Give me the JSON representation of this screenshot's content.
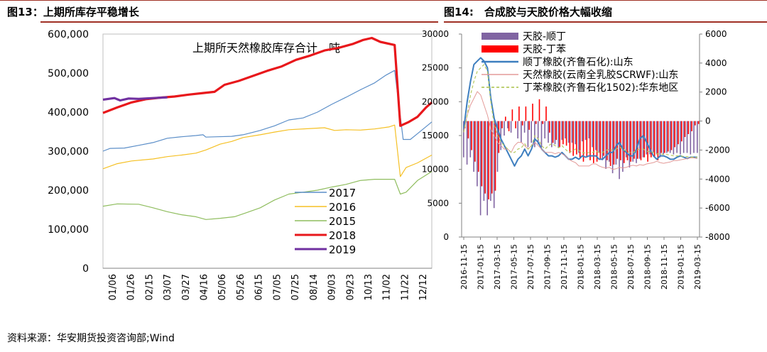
{
  "figure13": {
    "title": "图13：上期所库存平稳增长"
  },
  "figure14": {
    "title": "图14:　合成胶与天胶价格大幅收缩"
  },
  "source": "资料来源：华安期货投资咨询部;Wind",
  "chart_data": [
    {
      "type": "line",
      "title": "上期所天然橡胶库存合计　吨",
      "ylim": [
        0,
        600000
      ],
      "y_ticks": [
        "0",
        "100,000",
        "200,000",
        "300,000",
        "400,000",
        "500,000",
        "600,000"
      ],
      "x_ticks": [
        "01/06",
        "01/26",
        "02/15",
        "03/07",
        "03/27",
        "04/16",
        "05/06",
        "05/26",
        "06/15",
        "07/05",
        "07/25",
        "08/14",
        "09/03",
        "09/23",
        "10/13",
        "11/02",
        "11/22",
        "12/12"
      ],
      "legend_position": "bottom-right",
      "x_index_max": 230,
      "series": [
        {
          "name": "2017",
          "color": "#5b8ec8",
          "width": 1.2,
          "points": [
            [
              0,
              300000
            ],
            [
              5,
              307000
            ],
            [
              15,
              308000
            ],
            [
              25,
              315000
            ],
            [
              35,
              322000
            ],
            [
              45,
              333000
            ],
            [
              55,
              337000
            ],
            [
              65,
              340000
            ],
            [
              70,
              342000
            ],
            [
              72,
              336000
            ],
            [
              80,
              337000
            ],
            [
              90,
              338000
            ],
            [
              98,
              342000
            ],
            [
              110,
              353000
            ],
            [
              120,
              365000
            ],
            [
              130,
              380000
            ],
            [
              140,
              385000
            ],
            [
              150,
              400000
            ],
            [
              160,
              420000
            ],
            [
              170,
              438000
            ],
            [
              180,
              457000
            ],
            [
              190,
              475000
            ],
            [
              198,
              495000
            ],
            [
              204,
              507000
            ],
            [
              210,
              330000
            ],
            [
              215,
              330000
            ],
            [
              220,
              345000
            ],
            [
              230,
              375000
            ]
          ]
        },
        {
          "name": "2016",
          "color": "#f5c024",
          "width": 1.2,
          "points": [
            [
              0,
              255000
            ],
            [
              10,
              268000
            ],
            [
              20,
              275000
            ],
            [
              35,
              280000
            ],
            [
              45,
              286000
            ],
            [
              55,
              290000
            ],
            [
              65,
              295000
            ],
            [
              72,
              303000
            ],
            [
              82,
              318000
            ],
            [
              90,
              325000
            ],
            [
              98,
              335000
            ],
            [
              110,
              342000
            ],
            [
              120,
              349000
            ],
            [
              130,
              355000
            ],
            [
              145,
              358000
            ],
            [
              155,
              360000
            ],
            [
              162,
              353000
            ],
            [
              170,
              355000
            ],
            [
              180,
              354000
            ],
            [
              190,
              357000
            ],
            [
              200,
              362000
            ],
            [
              204,
              367000
            ],
            [
              208,
              235000
            ],
            [
              212,
              258000
            ],
            [
              220,
              270000
            ],
            [
              230,
              290000
            ]
          ]
        },
        {
          "name": "2015",
          "color": "#8fbd5e",
          "width": 1.2,
          "points": [
            [
              0,
              159000
            ],
            [
              10,
              165000
            ],
            [
              25,
              164000
            ],
            [
              35,
              155000
            ],
            [
              45,
              145000
            ],
            [
              55,
              137000
            ],
            [
              65,
              132000
            ],
            [
              72,
              125000
            ],
            [
              82,
              128000
            ],
            [
              92,
              132000
            ],
            [
              100,
              142000
            ],
            [
              110,
              155000
            ],
            [
              120,
              175000
            ],
            [
              130,
              190000
            ],
            [
              140,
              195000
            ],
            [
              150,
              200000
            ],
            [
              160,
              208000
            ],
            [
              170,
              215000
            ],
            [
              180,
              225000
            ],
            [
              190,
              228000
            ],
            [
              200,
              228000
            ],
            [
              204,
              228000
            ],
            [
              208,
              190000
            ],
            [
              212,
              195000
            ],
            [
              220,
              225000
            ],
            [
              230,
              248000
            ]
          ]
        },
        {
          "name": "2018",
          "color": "#e8171b",
          "width": 3.2,
          "points": [
            [
              0,
              398000
            ],
            [
              10,
              412000
            ],
            [
              20,
              425000
            ],
            [
              30,
              433000
            ],
            [
              40,
              437000
            ],
            [
              50,
              440000
            ],
            [
              60,
              445000
            ],
            [
              70,
              449000
            ],
            [
              78,
              452000
            ],
            [
              85,
              470000
            ],
            [
              95,
              480000
            ],
            [
              105,
              493000
            ],
            [
              115,
              506000
            ],
            [
              125,
              517000
            ],
            [
              135,
              534000
            ],
            [
              145,
              545000
            ],
            [
              155,
              558000
            ],
            [
              165,
              565000
            ],
            [
              175,
              575000
            ],
            [
              182,
              585000
            ],
            [
              188,
              590000
            ],
            [
              194,
              580000
            ],
            [
              204,
              572000
            ],
            [
              208,
              365000
            ],
            [
              214,
              375000
            ],
            [
              220,
              388000
            ],
            [
              226,
              412000
            ],
            [
              230,
              425000
            ]
          ]
        },
        {
          "name": "2019",
          "color": "#7030a0",
          "width": 3.2,
          "points": [
            [
              0,
              432000
            ],
            [
              8,
              436000
            ],
            [
              12,
              430000
            ],
            [
              18,
              435000
            ],
            [
              25,
              434000
            ],
            [
              35,
              436000
            ],
            [
              45,
              438000
            ]
          ]
        }
      ]
    },
    {
      "type": "bar+line",
      "left_ylim": [
        0,
        30000
      ],
      "right_ylim": [
        -8000,
        6000
      ],
      "left_ticks": [
        "0",
        "5000",
        "10000",
        "15000",
        "20000",
        "25000",
        "30000"
      ],
      "right_ticks": [
        "-8000",
        "-6000",
        "-4000",
        "-2000",
        "0",
        "2000",
        "4000",
        "6000"
      ],
      "x_ticks": [
        "2016-11-15",
        "2017-01-15",
        "2017-03-15",
        "2017-05-15",
        "2017-07-15",
        "2017-09-15",
        "2017-11-15",
        "2018-01-15",
        "2018-03-15",
        "2018-05-15",
        "2018-07-15",
        "2018-09-15",
        "2018-11-15",
        "2019-01-15",
        "2019-03-15"
      ],
      "legend_position": "top-left",
      "bar_series": [
        {
          "name": "天胶-顺丁",
          "color": "#8064a2",
          "values": [
            -2500,
            -3000,
            -2500,
            -3500,
            -4500,
            -6500,
            -5500,
            -6500,
            -5500,
            -6000,
            -3500,
            -2000,
            -1000,
            -500,
            -800,
            0,
            -1200,
            -1500,
            -800,
            -1800,
            -1500,
            -1800,
            -1600,
            -1800,
            -1200,
            -1500,
            -1800,
            -1600,
            -1800,
            -1300,
            -1200,
            -1500,
            -1500,
            -1600,
            -2200,
            -1400,
            -1300,
            -1200,
            -1800,
            -2000,
            -2200,
            -2700,
            -3300,
            -2800,
            -3600,
            -3000,
            -4000,
            -3500,
            -2500,
            -3200,
            -2800,
            -2900,
            -2600,
            -2500,
            -2300,
            -2300,
            -2200,
            -2300,
            -2500,
            -2300,
            -2200,
            -2200,
            -2300,
            -2200,
            -2300,
            -2200,
            -2200,
            -2300,
            -2200,
            -2200
          ]
        },
        {
          "name": "天胶-丁苯",
          "color": "#ff0000",
          "values": [
            -500,
            -1200,
            -2000,
            -2800,
            -3500,
            -4500,
            -5000,
            -5400,
            -5000,
            -4800,
            -2200,
            -500,
            300,
            -700,
            800,
            -500,
            1000,
            -300,
            1000,
            -600,
            1200,
            -200,
            1500,
            -200,
            1000,
            -800,
            -1500,
            -1300,
            -1800,
            -1600,
            -1700,
            -2200,
            -2400,
            -2300,
            -2500,
            -2800,
            -2500,
            -2700,
            -2900,
            -2800,
            -2600,
            -2400,
            -2700,
            -3100,
            -3000,
            -2600,
            -2700,
            -2900,
            -2700,
            -2800,
            -2600,
            -2600,
            -2700,
            -2500,
            -2800,
            -2500,
            -2500,
            -2700,
            -2200,
            -2200,
            -2100,
            -2000,
            -1800,
            -1600,
            -1400,
            -1100,
            -900,
            -700,
            -300,
            -200
          ]
        }
      ],
      "line_series": [
        {
          "name": "顺丁橡胶(齐鲁石化):山东",
          "color": "#3d7ebf",
          "width": 2,
          "values": [
            16000,
            20000,
            23000,
            25500,
            26000,
            26500,
            26000,
            25000,
            20500,
            17500,
            16000,
            14500,
            13500,
            12500,
            11500,
            10500,
            11500,
            12000,
            13000,
            12000,
            13000,
            14500,
            14000,
            13000,
            12500,
            12000,
            12000,
            11800,
            12000,
            12500,
            12000,
            11500,
            11500,
            11800,
            11500,
            12000,
            11800,
            12000,
            12000,
            12000,
            11500,
            11500,
            12000,
            12500,
            12500,
            13500,
            14000,
            13000,
            12500,
            12000,
            12000,
            13000,
            14500,
            15000,
            14000,
            13000,
            12000,
            11500,
            12000,
            12000,
            11800,
            11500,
            11500,
            11800,
            12000,
            11800,
            11600,
            11800,
            11800,
            11800
          ]
        },
        {
          "name": "天然橡胶(云南全乳胶SCRWF):山东",
          "color": "#e39a98",
          "width": 1,
          "values": [
            15500,
            18000,
            19500,
            20500,
            21500,
            21000,
            19500,
            18000,
            16000,
            15000,
            14000,
            13500,
            13000,
            13000,
            12500,
            13500,
            14000,
            14000,
            13500,
            13000,
            13500,
            14000,
            13500,
            13000,
            12500,
            12500,
            12500,
            12300,
            12500,
            12300,
            12000,
            11500,
            11200,
            11000,
            10500,
            10500,
            10500,
            10500,
            10800,
            10800,
            10500,
            10300,
            10200,
            10300,
            10000,
            10100,
            10300,
            10200,
            10300,
            10500,
            10600,
            10500,
            10700,
            10600,
            10800,
            10900,
            11000,
            11200,
            11000,
            10900,
            11000,
            11100,
            11300,
            11300,
            11400,
            11500,
            11600,
            11700,
            11700,
            11600
          ]
        },
        {
          "name": "丁苯橡胶(齐鲁石化1502):华东地区",
          "color": "#b5c960",
          "width": 1.2,
          "dash": "4,3",
          "values": [
            15500,
            18000,
            21000,
            23000,
            24500,
            25000,
            25500,
            24500,
            20000,
            16500,
            15000,
            14000,
            13500,
            13000,
            12500,
            12500,
            13000,
            13200,
            13800,
            13000,
            13500,
            15000,
            14500,
            13500,
            13000,
            13500,
            13800,
            13500,
            13200,
            13500,
            13000,
            12500,
            12700,
            13000,
            12800,
            12500,
            12400,
            12500,
            12500,
            12700,
            12500,
            12500,
            12800,
            13000,
            12800,
            13000,
            13300,
            13000,
            12700,
            12500,
            12500,
            12800,
            13000,
            13000,
            12700,
            12600,
            12500,
            12300,
            12300,
            12200,
            12200,
            12100,
            12000,
            12000,
            12000,
            11900,
            11900,
            11800,
            11800,
            11800
          ]
        }
      ]
    }
  ]
}
